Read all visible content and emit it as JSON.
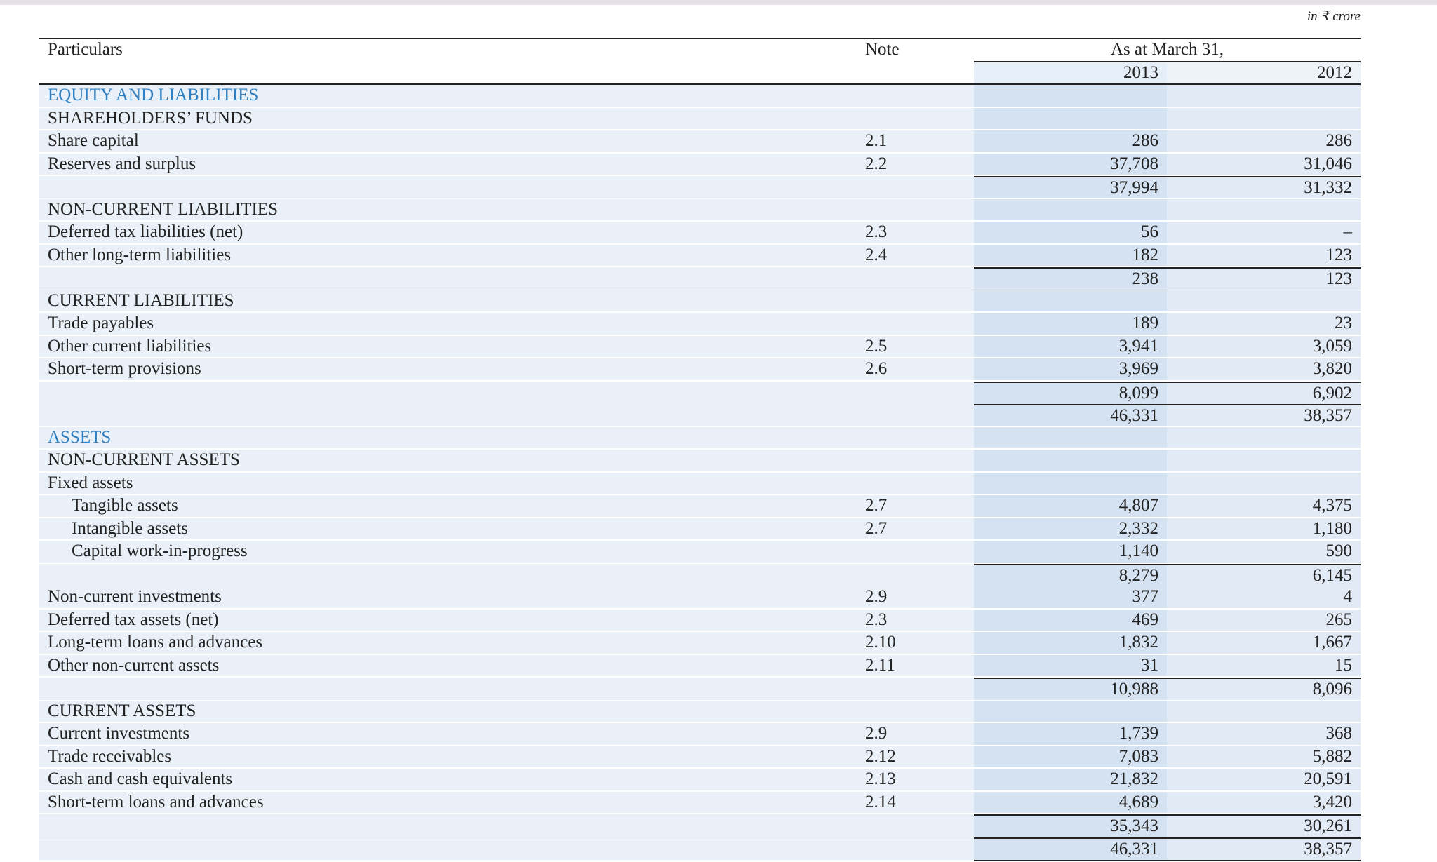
{
  "unit": "in ₹ crore",
  "header": {
    "particulars": "Particulars",
    "note": "Note",
    "period": "As at March 31,",
    "years": [
      "2013",
      "2012"
    ]
  },
  "sections": [
    {
      "title": "EQUITY AND LIABILITIES",
      "rows": [
        {
          "label": "SHAREHOLDERS’ FUNDS"
        },
        {
          "label": "Share capital",
          "note": "2.1",
          "values": [
            "286",
            "286"
          ]
        },
        {
          "label": "Reserves and surplus",
          "note": "2.2",
          "values": [
            "37,708",
            "31,046"
          ]
        },
        {
          "values": [
            "37,994",
            "31,332"
          ]
        },
        {
          "label": "NON-CURRENT LIABILITIES"
        },
        {
          "label": "Deferred tax liabilities (net)",
          "note": "2.3",
          "values": [
            "56",
            "–"
          ]
        },
        {
          "label": "Other long-term liabilities",
          "note": "2.4",
          "values": [
            "182",
            "123"
          ]
        },
        {
          "values": [
            "238",
            "123"
          ]
        },
        {
          "label": "CURRENT LIABILITIES"
        },
        {
          "label": "Trade payables",
          "values": [
            "189",
            "23"
          ]
        },
        {
          "label": "Other current liabilities",
          "note": "2.5",
          "values": [
            "3,941",
            "3,059"
          ]
        },
        {
          "label": "Short-term provisions",
          "note": "2.6",
          "values": [
            "3,969",
            "3,820"
          ]
        },
        {
          "values": [
            "8,099",
            "6,902"
          ]
        },
        {
          "values": [
            "46,331",
            "38,357"
          ]
        }
      ]
    },
    {
      "title": "ASSETS",
      "rows": [
        {
          "label": "NON-CURRENT ASSETS"
        },
        {
          "label": "Fixed assets",
          "items": [
            {
              "label": "Tangible assets",
              "note": "2.7",
              "values": [
                "4,807",
                "4,375"
              ]
            },
            {
              "label": "Intangible assets",
              "note": "2.7",
              "values": [
                "2,332",
                "1,180"
              ]
            },
            {
              "label": "Capital work-in-progress",
              "values": [
                "1,140",
                "590"
              ]
            }
          ]
        },
        {
          "values": [
            "8,279",
            "6,145"
          ]
        },
        {
          "label": "Non-current investments",
          "note": "2.9",
          "values": [
            "377",
            "4"
          ]
        },
        {
          "label": "Deferred tax assets (net)",
          "note": "2.3",
          "values": [
            "469",
            "265"
          ]
        },
        {
          "label": "Long-term loans and advances",
          "note": "2.10",
          "values": [
            "1,832",
            "1,667"
          ]
        },
        {
          "label": "Other non-current assets",
          "note": "2.11",
          "values": [
            "31",
            "15"
          ]
        },
        {
          "values": [
            "10,988",
            "8,096"
          ]
        },
        {
          "label": "CURRENT ASSETS"
        },
        {
          "label": "Current investments",
          "note": "2.9",
          "values": [
            "1,739",
            "368"
          ]
        },
        {
          "label": "Trade receivables",
          "note": "2.12",
          "values": [
            "7,083",
            "5,882"
          ]
        },
        {
          "label": "Cash and cash equivalents",
          "note": "2.13",
          "values": [
            "21,832",
            "20,591"
          ]
        },
        {
          "label": "Short-term loans and advances",
          "note": "2.14",
          "values": [
            "4,689",
            "3,420"
          ]
        },
        {
          "values": [
            "35,343",
            "30,261"
          ]
        },
        {
          "values": [
            "46,331",
            "38,357"
          ]
        }
      ]
    }
  ]
}
